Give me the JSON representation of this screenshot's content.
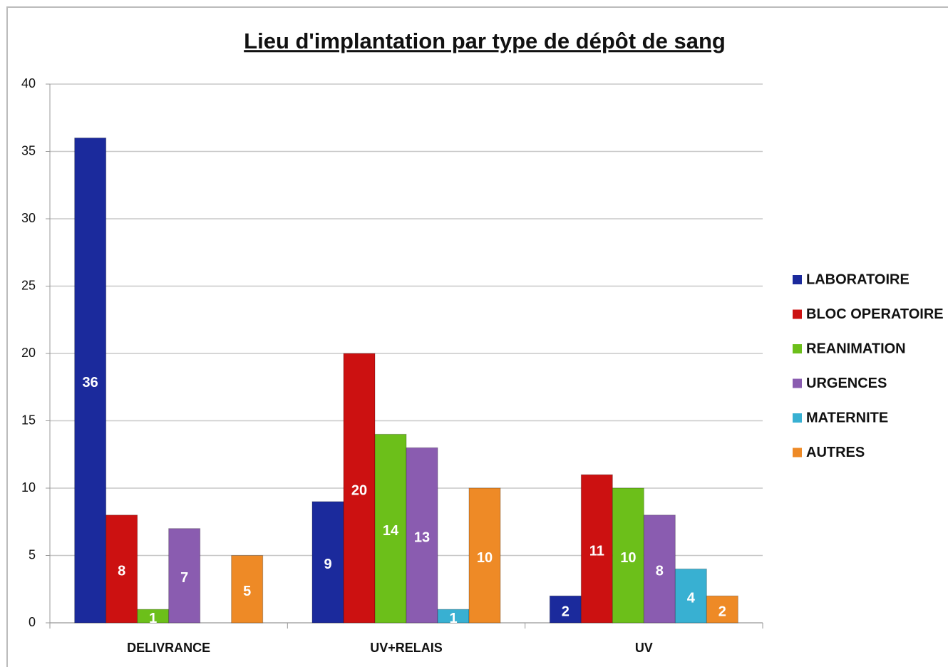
{
  "chart_data": {
    "type": "bar",
    "title": "Lieu d'implantation par type de dépôt de sang",
    "categories": [
      "DELIVRANCE",
      "UV+RELAIS",
      "UV"
    ],
    "series": [
      {
        "name": "LABORATOIRE",
        "color": "#1b2a9c",
        "values": [
          36,
          9,
          2
        ]
      },
      {
        "name": "BLOC OPERATOIRE",
        "color": "#cc1111",
        "values": [
          8,
          20,
          11
        ]
      },
      {
        "name": "REANIMATION",
        "color": "#6cbf1a",
        "values": [
          1,
          14,
          10
        ]
      },
      {
        "name": "URGENCES",
        "color": "#8a5cb0",
        "values": [
          7,
          13,
          8
        ]
      },
      {
        "name": "MATERNITE",
        "color": "#38b0d2",
        "values": [
          null,
          1,
          4
        ]
      },
      {
        "name": "AUTRES",
        "color": "#ee8a26",
        "values": [
          5,
          10,
          2
        ]
      }
    ],
    "ylim": [
      0,
      40
    ],
    "yticks": [
      0,
      5,
      10,
      15,
      20,
      25,
      30,
      35,
      40
    ],
    "grid": true,
    "legend": "right"
  }
}
